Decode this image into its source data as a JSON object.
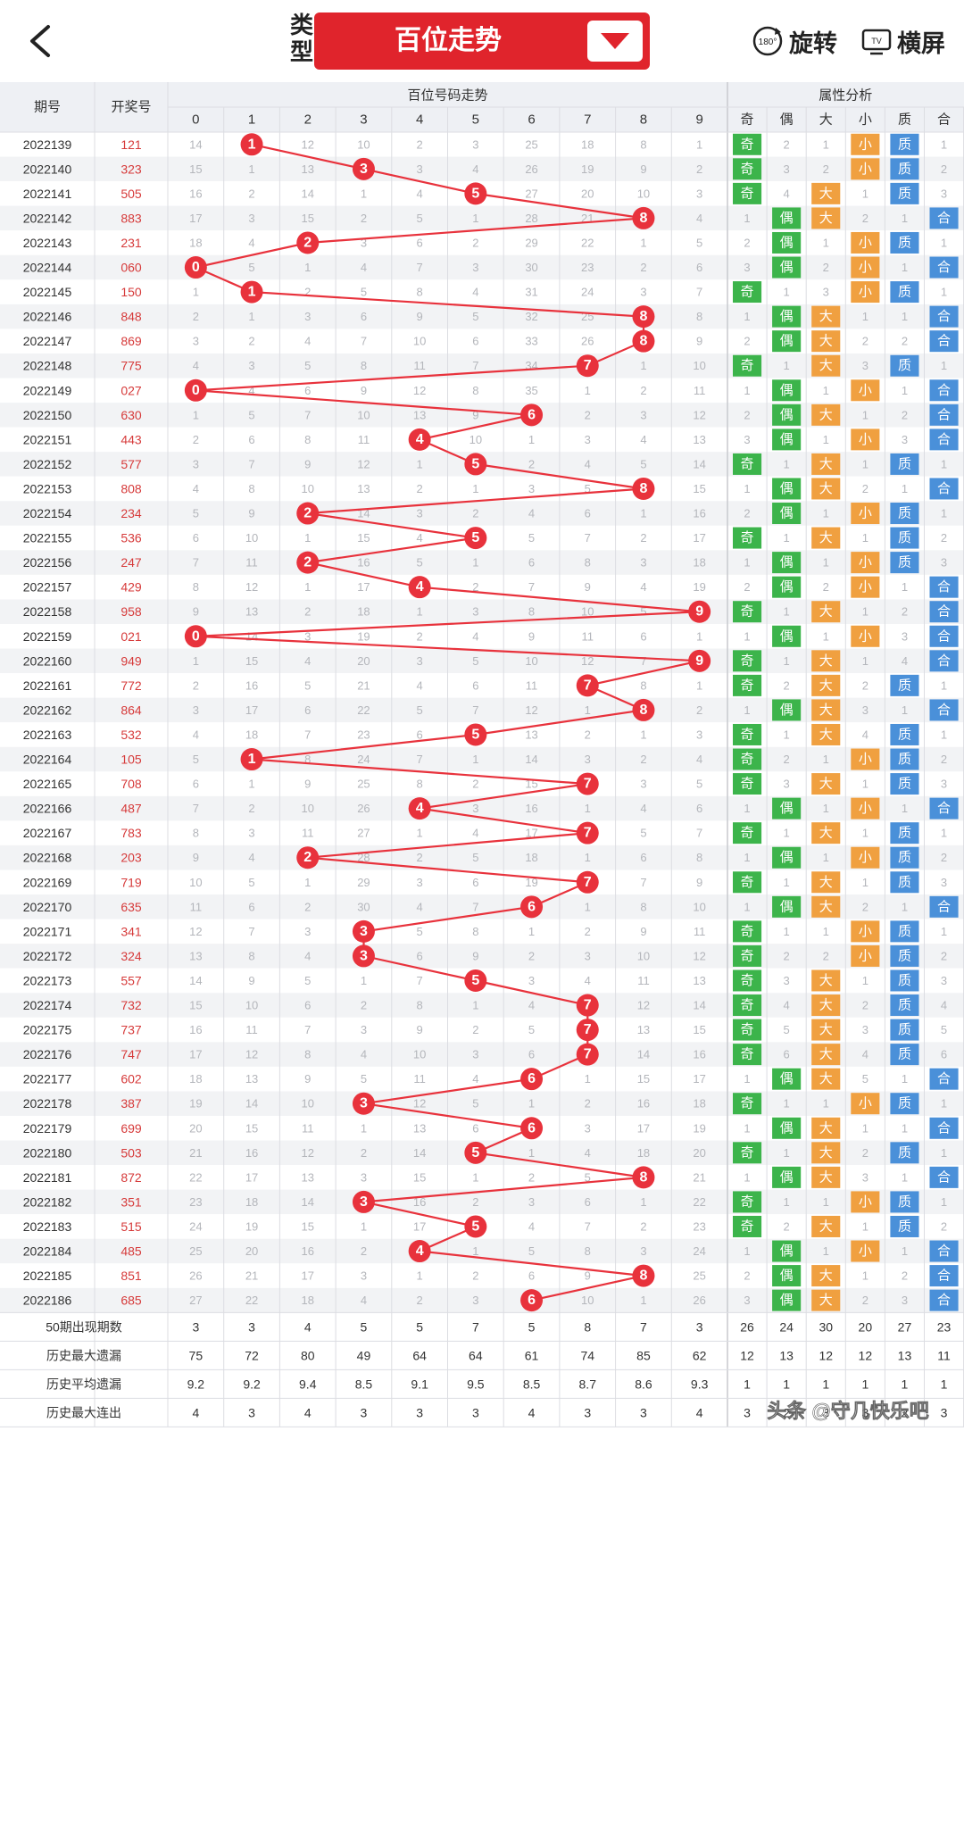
{
  "header": {
    "back_label": "返回",
    "type_label": "类型",
    "selector_value": "百位走势",
    "rotate_label": "旋转",
    "rotate_badge": "180°",
    "landscape_label": "横屏",
    "landscape_badge": "TV"
  },
  "table": {
    "col_period": "期号",
    "col_draw": "开奖号",
    "trend_group": "百位号码走势",
    "attr_group": "属性分析",
    "digits": [
      "0",
      "1",
      "2",
      "3",
      "4",
      "5",
      "6",
      "7",
      "8",
      "9"
    ],
    "attr_headers": [
      "奇",
      "偶",
      "大",
      "小",
      "质",
      "合"
    ],
    "rows": [
      {
        "p": "2022139",
        "d": "121",
        "m": [
          14,
          null,
          12,
          10,
          2,
          3,
          25,
          18,
          8,
          1
        ],
        "a": [
          "奇",
          "2",
          "1",
          "小",
          "质",
          "1"
        ]
      },
      {
        "p": "2022140",
        "d": "323",
        "m": [
          15,
          1,
          13,
          null,
          3,
          4,
          26,
          19,
          9,
          2
        ],
        "a": [
          "奇",
          "3",
          "2",
          "小",
          "质",
          "2"
        ]
      },
      {
        "p": "2022141",
        "d": "505",
        "m": [
          16,
          2,
          14,
          1,
          4,
          null,
          27,
          20,
          10,
          3
        ],
        "a": [
          "奇",
          "4",
          "大",
          "1",
          "质",
          "3"
        ]
      },
      {
        "p": "2022142",
        "d": "883",
        "m": [
          17,
          3,
          15,
          2,
          5,
          1,
          28,
          21,
          null,
          4
        ],
        "a": [
          "1",
          "偶",
          "大",
          "2",
          "1",
          "合"
        ]
      },
      {
        "p": "2022143",
        "d": "231",
        "m": [
          18,
          4,
          null,
          3,
          6,
          2,
          29,
          22,
          1,
          5
        ],
        "a": [
          "2",
          "偶",
          "1",
          "小",
          "质",
          "1"
        ]
      },
      {
        "p": "2022144",
        "d": "060",
        "m": [
          null,
          5,
          1,
          4,
          7,
          3,
          30,
          23,
          2,
          6
        ],
        "a": [
          "3",
          "偶",
          "2",
          "小",
          "1",
          "合"
        ]
      },
      {
        "p": "2022145",
        "d": "150",
        "m": [
          1,
          null,
          2,
          5,
          8,
          4,
          31,
          24,
          3,
          7
        ],
        "a": [
          "奇",
          "1",
          "3",
          "小",
          "质",
          "1"
        ]
      },
      {
        "p": "2022146",
        "d": "848",
        "m": [
          2,
          1,
          3,
          6,
          9,
          5,
          32,
          25,
          null,
          8
        ],
        "a": [
          "1",
          "偶",
          "大",
          "1",
          "1",
          "合"
        ]
      },
      {
        "p": "2022147",
        "d": "869",
        "m": [
          3,
          2,
          4,
          7,
          10,
          6,
          33,
          26,
          null,
          9
        ],
        "a": [
          "2",
          "偶",
          "大",
          "2",
          "2",
          "合"
        ]
      },
      {
        "p": "2022148",
        "d": "775",
        "m": [
          4,
          3,
          5,
          8,
          11,
          7,
          34,
          null,
          1,
          10
        ],
        "a": [
          "奇",
          "1",
          "大",
          "3",
          "质",
          "1"
        ]
      },
      {
        "p": "2022149",
        "d": "027",
        "m": [
          null,
          4,
          6,
          9,
          12,
          8,
          35,
          1,
          2,
          11
        ],
        "a": [
          "1",
          "偶",
          "1",
          "小",
          "1",
          "合"
        ]
      },
      {
        "p": "2022150",
        "d": "630",
        "m": [
          1,
          5,
          7,
          10,
          13,
          9,
          null,
          2,
          3,
          12
        ],
        "a": [
          "2",
          "偶",
          "大",
          "1",
          "2",
          "合"
        ]
      },
      {
        "p": "2022151",
        "d": "443",
        "m": [
          2,
          6,
          8,
          11,
          null,
          10,
          1,
          3,
          4,
          13
        ],
        "a": [
          "3",
          "偶",
          "1",
          "小",
          "3",
          "合"
        ]
      },
      {
        "p": "2022152",
        "d": "577",
        "m": [
          3,
          7,
          9,
          12,
          1,
          null,
          2,
          4,
          5,
          14
        ],
        "a": [
          "奇",
          "1",
          "大",
          "1",
          "质",
          "1"
        ]
      },
      {
        "p": "2022153",
        "d": "808",
        "m": [
          4,
          8,
          10,
          13,
          2,
          1,
          3,
          5,
          null,
          15
        ],
        "a": [
          "1",
          "偶",
          "大",
          "2",
          "1",
          "合"
        ]
      },
      {
        "p": "2022154",
        "d": "234",
        "m": [
          5,
          9,
          null,
          14,
          3,
          2,
          4,
          6,
          1,
          16
        ],
        "a": [
          "2",
          "偶",
          "1",
          "小",
          "质",
          "1"
        ]
      },
      {
        "p": "2022155",
        "d": "536",
        "m": [
          6,
          10,
          1,
          15,
          4,
          null,
          5,
          7,
          2,
          17
        ],
        "a": [
          "奇",
          "1",
          "大",
          "1",
          "质",
          "2"
        ]
      },
      {
        "p": "2022156",
        "d": "247",
        "m": [
          7,
          11,
          null,
          16,
          5,
          1,
          6,
          8,
          3,
          18
        ],
        "a": [
          "1",
          "偶",
          "1",
          "小",
          "质",
          "3"
        ]
      },
      {
        "p": "2022157",
        "d": "429",
        "m": [
          8,
          12,
          1,
          17,
          null,
          2,
          7,
          9,
          4,
          19
        ],
        "a": [
          "2",
          "偶",
          "2",
          "小",
          "1",
          "合"
        ]
      },
      {
        "p": "2022158",
        "d": "958",
        "m": [
          9,
          13,
          2,
          18,
          1,
          3,
          8,
          10,
          5,
          null
        ],
        "a": [
          "奇",
          "1",
          "大",
          "1",
          "2",
          "合"
        ]
      },
      {
        "p": "2022159",
        "d": "021",
        "m": [
          null,
          14,
          3,
          19,
          2,
          4,
          9,
          11,
          6,
          1
        ],
        "a": [
          "1",
          "偶",
          "1",
          "小",
          "3",
          "合"
        ]
      },
      {
        "p": "2022160",
        "d": "949",
        "m": [
          1,
          15,
          4,
          20,
          3,
          5,
          10,
          12,
          7,
          null
        ],
        "a": [
          "奇",
          "1",
          "大",
          "1",
          "4",
          "合"
        ]
      },
      {
        "p": "2022161",
        "d": "772",
        "m": [
          2,
          16,
          5,
          21,
          4,
          6,
          11,
          null,
          8,
          1
        ],
        "a": [
          "奇",
          "2",
          "大",
          "2",
          "质",
          "1"
        ]
      },
      {
        "p": "2022162",
        "d": "864",
        "m": [
          3,
          17,
          6,
          22,
          5,
          7,
          12,
          1,
          null,
          2
        ],
        "a": [
          "1",
          "偶",
          "大",
          "3",
          "1",
          "合"
        ]
      },
      {
        "p": "2022163",
        "d": "532",
        "m": [
          4,
          18,
          7,
          23,
          6,
          null,
          13,
          2,
          1,
          3
        ],
        "a": [
          "奇",
          "1",
          "大",
          "4",
          "质",
          "1"
        ]
      },
      {
        "p": "2022164",
        "d": "105",
        "m": [
          5,
          null,
          8,
          24,
          7,
          1,
          14,
          3,
          2,
          4
        ],
        "a": [
          "奇",
          "2",
          "1",
          "小",
          "质",
          "2"
        ]
      },
      {
        "p": "2022165",
        "d": "708",
        "m": [
          6,
          1,
          9,
          25,
          8,
          2,
          15,
          null,
          3,
          5
        ],
        "a": [
          "奇",
          "3",
          "大",
          "1",
          "质",
          "3"
        ]
      },
      {
        "p": "2022166",
        "d": "487",
        "m": [
          7,
          2,
          10,
          26,
          null,
          3,
          16,
          1,
          4,
          6
        ],
        "a": [
          "1",
          "偶",
          "1",
          "小",
          "1",
          "合"
        ]
      },
      {
        "p": "2022167",
        "d": "783",
        "m": [
          8,
          3,
          11,
          27,
          1,
          4,
          17,
          null,
          5,
          7
        ],
        "a": [
          "奇",
          "1",
          "大",
          "1",
          "质",
          "1"
        ]
      },
      {
        "p": "2022168",
        "d": "203",
        "m": [
          9,
          4,
          null,
          28,
          2,
          5,
          18,
          1,
          6,
          8
        ],
        "a": [
          "1",
          "偶",
          "1",
          "小",
          "质",
          "2"
        ]
      },
      {
        "p": "2022169",
        "d": "719",
        "m": [
          10,
          5,
          1,
          29,
          3,
          6,
          19,
          null,
          7,
          9
        ],
        "a": [
          "奇",
          "1",
          "大",
          "1",
          "质",
          "3"
        ]
      },
      {
        "p": "2022170",
        "d": "635",
        "m": [
          11,
          6,
          2,
          30,
          4,
          7,
          null,
          1,
          8,
          10
        ],
        "a": [
          "1",
          "偶",
          "大",
          "2",
          "1",
          "合"
        ]
      },
      {
        "p": "2022171",
        "d": "341",
        "m": [
          12,
          7,
          3,
          null,
          5,
          8,
          1,
          2,
          9,
          11
        ],
        "a": [
          "奇",
          "1",
          "1",
          "小",
          "质",
          "1"
        ]
      },
      {
        "p": "2022172",
        "d": "324",
        "m": [
          13,
          8,
          4,
          null,
          6,
          9,
          2,
          3,
          10,
          12
        ],
        "a": [
          "奇",
          "2",
          "2",
          "小",
          "质",
          "2"
        ]
      },
      {
        "p": "2022173",
        "d": "557",
        "m": [
          14,
          9,
          5,
          1,
          7,
          null,
          3,
          4,
          11,
          13
        ],
        "a": [
          "奇",
          "3",
          "大",
          "1",
          "质",
          "3"
        ]
      },
      {
        "p": "2022174",
        "d": "732",
        "m": [
          15,
          10,
          6,
          2,
          8,
          1,
          4,
          null,
          12,
          14
        ],
        "a": [
          "奇",
          "4",
          "大",
          "2",
          "质",
          "4"
        ]
      },
      {
        "p": "2022175",
        "d": "737",
        "m": [
          16,
          11,
          7,
          3,
          9,
          2,
          5,
          null,
          13,
          15
        ],
        "a": [
          "奇",
          "5",
          "大",
          "3",
          "质",
          "5"
        ]
      },
      {
        "p": "2022176",
        "d": "747",
        "m": [
          17,
          12,
          8,
          4,
          10,
          3,
          6,
          null,
          14,
          16
        ],
        "a": [
          "奇",
          "6",
          "大",
          "4",
          "质",
          "6"
        ]
      },
      {
        "p": "2022177",
        "d": "602",
        "m": [
          18,
          13,
          9,
          5,
          11,
          4,
          null,
          1,
          15,
          17
        ],
        "a": [
          "1",
          "偶",
          "大",
          "5",
          "1",
          "合"
        ]
      },
      {
        "p": "2022178",
        "d": "387",
        "m": [
          19,
          14,
          10,
          null,
          12,
          5,
          1,
          2,
          16,
          18
        ],
        "a": [
          "奇",
          "1",
          "1",
          "小",
          "质",
          "1"
        ]
      },
      {
        "p": "2022179",
        "d": "699",
        "m": [
          20,
          15,
          11,
          1,
          13,
          6,
          null,
          3,
          17,
          19
        ],
        "a": [
          "1",
          "偶",
          "大",
          "1",
          "1",
          "合"
        ]
      },
      {
        "p": "2022180",
        "d": "503",
        "m": [
          21,
          16,
          12,
          2,
          14,
          null,
          1,
          4,
          18,
          20
        ],
        "a": [
          "奇",
          "1",
          "大",
          "2",
          "质",
          "1"
        ]
      },
      {
        "p": "2022181",
        "d": "872",
        "m": [
          22,
          17,
          13,
          3,
          15,
          1,
          2,
          5,
          null,
          21
        ],
        "a": [
          "1",
          "偶",
          "大",
          "3",
          "1",
          "合"
        ]
      },
      {
        "p": "2022182",
        "d": "351",
        "m": [
          23,
          18,
          14,
          null,
          16,
          2,
          3,
          6,
          1,
          22
        ],
        "a": [
          "奇",
          "1",
          "1",
          "小",
          "质",
          "1"
        ]
      },
      {
        "p": "2022183",
        "d": "515",
        "m": [
          24,
          19,
          15,
          1,
          17,
          null,
          4,
          7,
          2,
          23
        ],
        "a": [
          "奇",
          "2",
          "大",
          "1",
          "质",
          "2"
        ]
      },
      {
        "p": "2022184",
        "d": "485",
        "m": [
          25,
          20,
          16,
          2,
          null,
          1,
          5,
          8,
          3,
          24
        ],
        "a": [
          "1",
          "偶",
          "1",
          "小",
          "1",
          "合"
        ]
      },
      {
        "p": "2022185",
        "d": "851",
        "m": [
          26,
          21,
          17,
          3,
          1,
          2,
          6,
          9,
          null,
          25
        ],
        "a": [
          "2",
          "偶",
          "大",
          "1",
          "2",
          "合"
        ]
      },
      {
        "p": "2022186",
        "d": "685",
        "m": [
          27,
          22,
          18,
          4,
          2,
          3,
          null,
          10,
          1,
          26
        ],
        "a": [
          "3",
          "偶",
          "大",
          "2",
          "3",
          "合"
        ]
      }
    ],
    "stats": [
      {
        "label": "50期出现期数",
        "v": [
          "3",
          "3",
          "4",
          "5",
          "5",
          "7",
          "5",
          "8",
          "7",
          "3"
        ],
        "a": [
          "26",
          "24",
          "30",
          "20",
          "27",
          "23"
        ]
      },
      {
        "label": "历史最大遗漏",
        "v": [
          "75",
          "72",
          "80",
          "49",
          "64",
          "64",
          "61",
          "74",
          "85",
          "62"
        ],
        "a": [
          "12",
          "13",
          "12",
          "12",
          "13",
          "11"
        ]
      },
      {
        "label": "历史平均遗漏",
        "v": [
          "9.2",
          "9.2",
          "9.4",
          "8.5",
          "9.1",
          "9.5",
          "8.5",
          "8.7",
          "8.6",
          "9.3"
        ],
        "a": [
          "1",
          "1",
          "1",
          "1",
          "1",
          "1"
        ]
      },
      {
        "label": "历史最大连出",
        "v": [
          "4",
          "3",
          "4",
          "3",
          "3",
          "3",
          "4",
          "3",
          "3",
          "4"
        ],
        "a": [
          "3",
          "2",
          "3",
          "3",
          "2",
          "3"
        ]
      }
    ]
  },
  "watermark": "头条 @守几快乐吧",
  "colors": {
    "accent_red": "#e0242c",
    "ball_red": "#e8323c",
    "odd_green": "#3cb44b",
    "big_orange": "#f0a040",
    "prime_blue": "#4a90d9"
  }
}
